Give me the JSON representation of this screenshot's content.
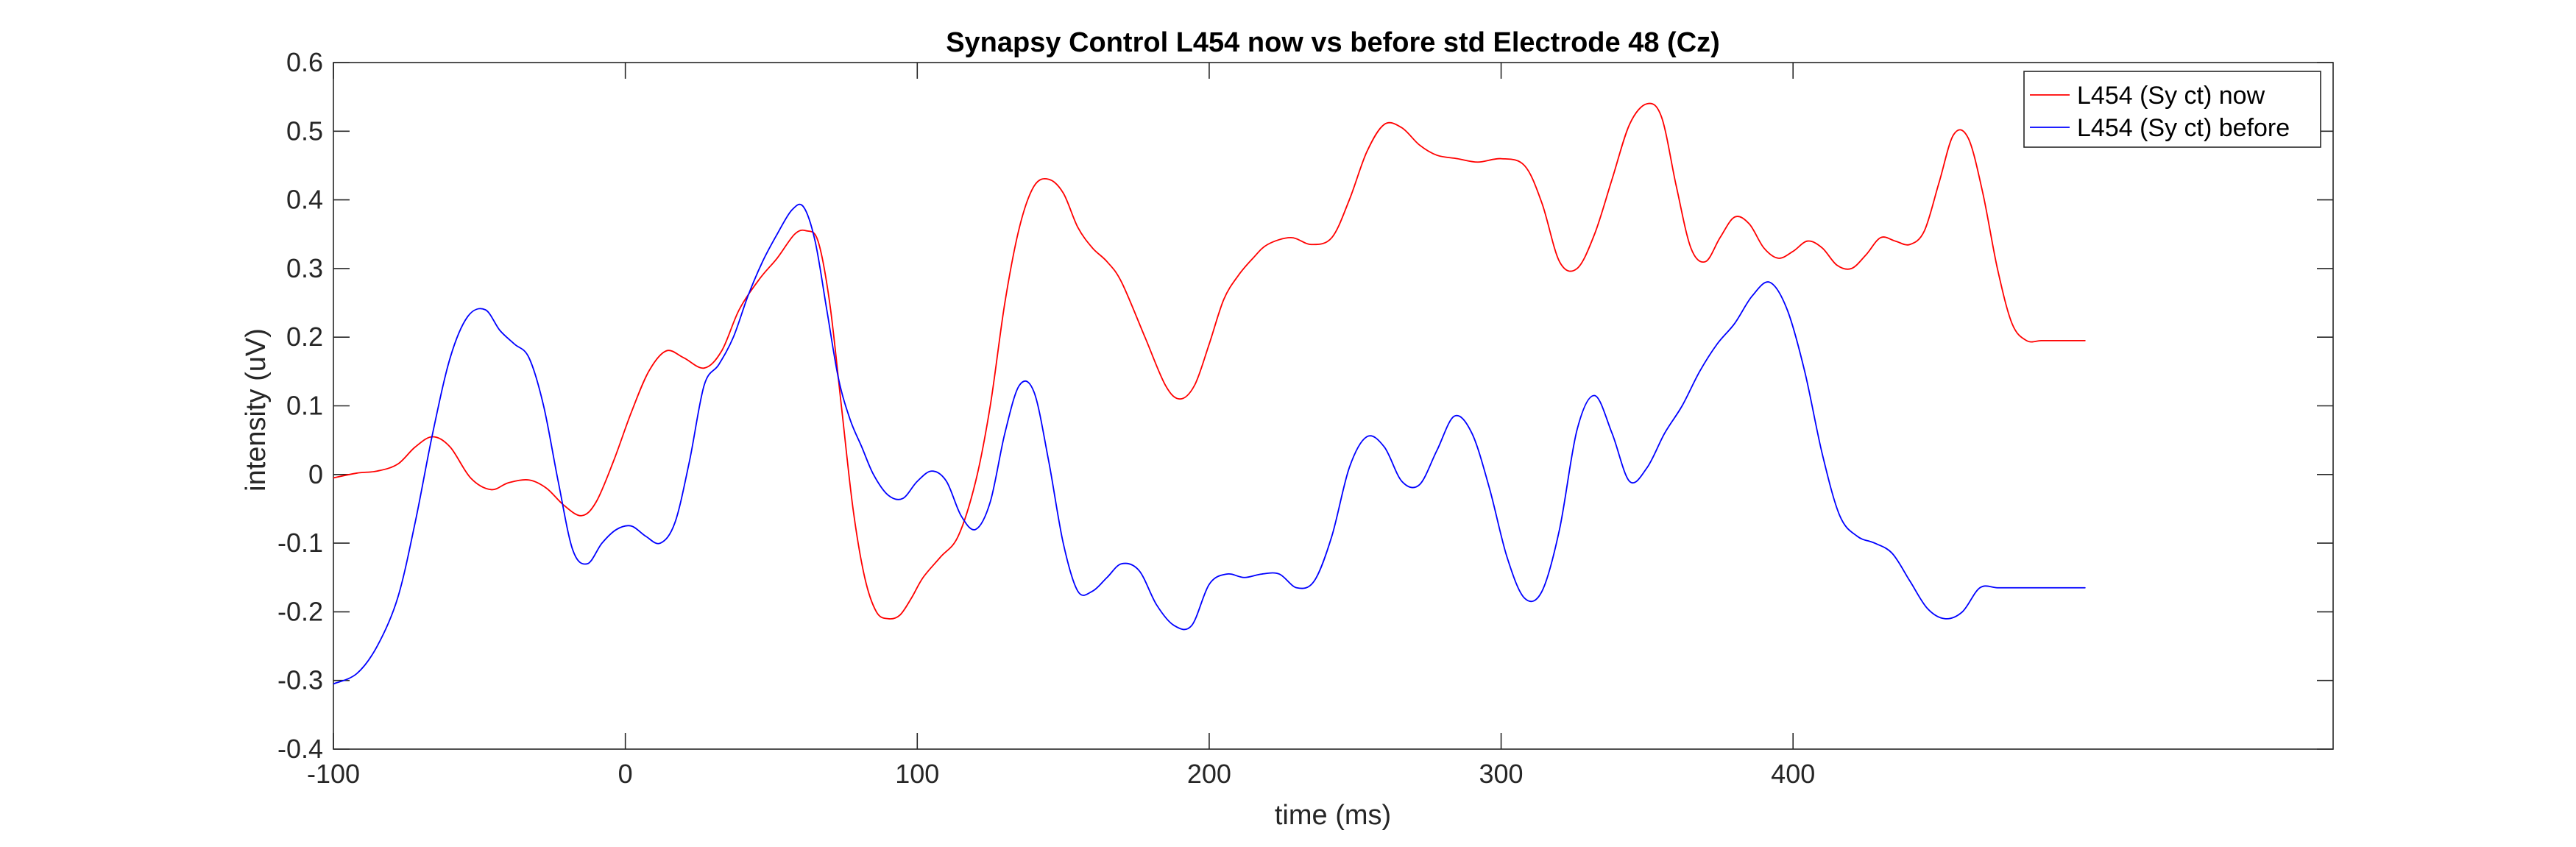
{
  "chart_data": {
    "type": "line",
    "title": "Synapsy Control L454 now vs before std Electrode 48 (Cz)",
    "xlabel": "time (ms)",
    "ylabel": "intensity (uV)",
    "xlim": [
      -100,
      585
    ],
    "ylim": [
      -0.4,
      0.6
    ],
    "x_ticks": [
      -100,
      0,
      100,
      200,
      300,
      400
    ],
    "x_tick_labels": [
      "-100",
      "0",
      "100",
      "200",
      "300",
      "400"
    ],
    "y_ticks": [
      -0.4,
      -0.3,
      -0.2,
      -0.1,
      0,
      0.1,
      0.2,
      0.3,
      0.4,
      0.5,
      0.6
    ],
    "y_tick_labels": [
      "-0.4",
      "-0.3",
      "-0.2",
      "-0.1",
      "0",
      "0.1",
      "0.2",
      "0.3",
      "0.4",
      "0.5",
      "0.6"
    ],
    "grid": false,
    "legend_position": "top-right",
    "series": [
      {
        "name": "L454 (Sy ct) now",
        "color": "#ff0000",
        "x": [
          -100,
          -92,
          -85,
          -78,
          -72,
          -66,
          -60,
          -53,
          -46,
          -40,
          -33,
          -27,
          -21,
          -15,
          -10,
          -4,
          2,
          8,
          14,
          20,
          27,
          33,
          39,
          46,
          52,
          58,
          62,
          66,
          70,
          74,
          78,
          82,
          86,
          90,
          94,
          98,
          102,
          108,
          114,
          120,
          125,
          130,
          135,
          140,
          145,
          150,
          155,
          160,
          165,
          170,
          178,
          185,
          190,
          195,
          200,
          205,
          210,
          215,
          220,
          228,
          235,
          242,
          248,
          254,
          260,
          266,
          272,
          278,
          285,
          292,
          300,
          308,
          314,
          320,
          326,
          332,
          338,
          344,
          350,
          355,
          360,
          365,
          370,
          375,
          380,
          385,
          390,
          395,
          400,
          405,
          410,
          415,
          420,
          425,
          430,
          435,
          440,
          445,
          450,
          455,
          460,
          465,
          470,
          475,
          480,
          485,
          490,
          495,
          500
        ],
        "y": [
          -0.005,
          0.002,
          0.005,
          0.015,
          0.04,
          0.055,
          0.04,
          -0.005,
          -0.022,
          -0.012,
          -0.008,
          -0.02,
          -0.045,
          -0.06,
          -0.04,
          0.02,
          0.09,
          0.15,
          0.18,
          0.17,
          0.155,
          0.18,
          0.24,
          0.285,
          0.315,
          0.35,
          0.355,
          0.34,
          0.25,
          0.1,
          -0.05,
          -0.15,
          -0.2,
          -0.21,
          -0.205,
          -0.18,
          -0.15,
          -0.12,
          -0.09,
          -0.01,
          0.1,
          0.25,
          0.36,
          0.42,
          0.43,
          0.41,
          0.36,
          0.33,
          0.31,
          0.28,
          0.2,
          0.13,
          0.11,
          0.13,
          0.19,
          0.255,
          0.29,
          0.315,
          0.335,
          0.345,
          0.335,
          0.345,
          0.4,
          0.47,
          0.51,
          0.505,
          0.48,
          0.465,
          0.46,
          0.455,
          0.46,
          0.45,
          0.395,
          0.31,
          0.3,
          0.35,
          0.43,
          0.51,
          0.54,
          0.52,
          0.42,
          0.33,
          0.31,
          0.345,
          0.375,
          0.365,
          0.33,
          0.315,
          0.325,
          0.34,
          0.33,
          0.305,
          0.3,
          0.32,
          0.345,
          0.34,
          0.335,
          0.355,
          0.425,
          0.495,
          0.49,
          0.41,
          0.3,
          0.22,
          0.195,
          0.195,
          0.195,
          0.195,
          0.195
        ]
      },
      {
        "name": "L454 (Sy ct) before",
        "color": "#0000ff",
        "x": [
          -100,
          -92,
          -85,
          -78,
          -72,
          -66,
          -60,
          -54,
          -48,
          -43,
          -38,
          -33,
          -28,
          -23,
          -18,
          -13,
          -8,
          -3,
          2,
          7,
          12,
          17,
          22,
          27,
          32,
          37,
          42,
          47,
          52,
          57,
          61,
          65,
          69,
          73,
          77,
          81,
          85,
          90,
          95,
          100,
          105,
          110,
          115,
          120,
          125,
          130,
          135,
          140,
          145,
          150,
          155,
          160,
          165,
          170,
          176,
          182,
          188,
          194,
          200,
          206,
          212,
          218,
          224,
          230,
          236,
          242,
          248,
          254,
          260,
          266,
          272,
          278,
          284,
          290,
          296,
          302,
          308,
          314,
          320,
          326,
          332,
          338,
          344,
          350,
          356,
          362,
          368,
          374,
          380,
          386,
          392,
          398,
          404,
          410,
          416,
          422,
          428,
          434,
          440,
          446,
          452,
          458,
          464,
          470,
          476,
          482,
          488,
          494,
          500
        ],
        "y": [
          -0.305,
          -0.29,
          -0.25,
          -0.18,
          -0.07,
          0.06,
          0.17,
          0.23,
          0.24,
          0.21,
          0.19,
          0.17,
          0.1,
          -0.01,
          -0.11,
          -0.13,
          -0.1,
          -0.08,
          -0.075,
          -0.09,
          -0.1,
          -0.07,
          0.02,
          0.13,
          0.16,
          0.2,
          0.26,
          0.31,
          0.35,
          0.385,
          0.39,
          0.34,
          0.24,
          0.14,
          0.08,
          0.04,
          0.0,
          -0.03,
          -0.035,
          -0.01,
          0.005,
          -0.01,
          -0.06,
          -0.08,
          -0.04,
          0.06,
          0.13,
          0.12,
          0.02,
          -0.1,
          -0.17,
          -0.17,
          -0.15,
          -0.13,
          -0.14,
          -0.19,
          -0.22,
          -0.22,
          -0.16,
          -0.145,
          -0.15,
          -0.145,
          -0.145,
          -0.165,
          -0.155,
          -0.09,
          0.01,
          0.055,
          0.04,
          -0.01,
          -0.015,
          0.035,
          0.085,
          0.06,
          -0.02,
          -0.12,
          -0.18,
          -0.17,
          -0.08,
          0.065,
          0.115,
          0.06,
          -0.01,
          0.01,
          0.06,
          0.1,
          0.15,
          0.19,
          0.22,
          0.26,
          0.28,
          0.24,
          0.15,
          0.03,
          -0.06,
          -0.09,
          -0.1,
          -0.115,
          -0.155,
          -0.195,
          -0.21,
          -0.2,
          -0.165,
          -0.165,
          -0.165,
          -0.165,
          -0.165,
          -0.165,
          -0.165
        ]
      }
    ]
  }
}
